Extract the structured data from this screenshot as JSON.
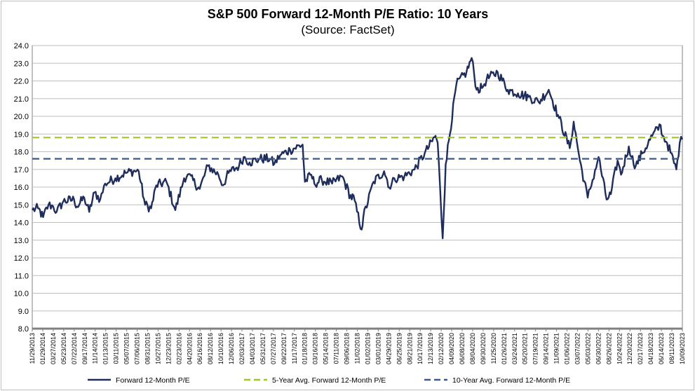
{
  "chart_data": {
    "type": "line",
    "title": "S&P 500 Forward 12-Month P/E Ratio: 10 Years",
    "subtitle": "(Source: FactSet)",
    "ylim": [
      8.0,
      24.0
    ],
    "yticks": [
      "8.0",
      "9.0",
      "10.0",
      "11.0",
      "12.0",
      "13.0",
      "14.0",
      "15.0",
      "16.0",
      "17.0",
      "18.0",
      "19.0",
      "20.0",
      "21.0",
      "22.0",
      "23.0",
      "24.0"
    ],
    "xlim": [
      "2013-11-29",
      "2023-11-30"
    ],
    "xtick_labels": [
      "11/29/2013",
      "01/29/2014",
      "03/27/2014",
      "05/23/2014",
      "07/22/2014",
      "09/17/2014",
      "11/14/2014",
      "01/13/2015",
      "03/11/2015",
      "05/07/2015",
      "07/06/2015",
      "08/31/2015",
      "10/27/2015",
      "12/23/2015",
      "02/23/2016",
      "04/20/2016",
      "06/16/2016",
      "08/12/2016",
      "10/10/2016",
      "12/06/2016",
      "02/03/2017",
      "04/03/2017",
      "05/31/2017",
      "07/27/2017",
      "09/22/2017",
      "11/17/2017",
      "01/18/2018",
      "03/16/2018",
      "05/14/2018",
      "07/11/2018",
      "09/06/2018",
      "11/02/2018",
      "01/02/2019",
      "03/01/2019",
      "04/29/2019",
      "06/25/2019",
      "08/21/2019",
      "10/17/2019",
      "12/13/2019",
      "02/12/2020",
      "04/09/2020",
      "06/08/2020",
      "08/04/2020",
      "09/30/2020",
      "11/25/2020",
      "01/26/2021",
      "03/24/2021",
      "05/20/2021",
      "07/19/2021",
      "09/14/2021",
      "11/09/2021",
      "01/06/2022",
      "03/07/2022",
      "05/03/2022",
      "06/30/2022",
      "08/26/2022",
      "10/24/2022",
      "12/20/2022",
      "02/17/2023",
      "04/18/2023",
      "06/14/2023",
      "08/11/2023",
      "10/09/2023"
    ],
    "grid": true,
    "legend_position": "bottom",
    "series": [
      {
        "name": "Forward 12-Month P/E",
        "color": "#1f2d5c",
        "style": "solid",
        "points": [
          [
            "2013-11-29",
            14.7
          ],
          [
            "2013-12-31",
            14.8
          ],
          [
            "2014-01-29",
            14.3
          ],
          [
            "2014-02-28",
            15.0
          ],
          [
            "2014-03-27",
            14.9
          ],
          [
            "2014-04-15",
            14.6
          ],
          [
            "2014-05-23",
            15.2
          ],
          [
            "2014-07-22",
            15.3
          ],
          [
            "2014-08-07",
            14.9
          ],
          [
            "2014-09-17",
            15.4
          ],
          [
            "2014-10-15",
            14.6
          ],
          [
            "2014-11-14",
            15.7
          ],
          [
            "2014-12-16",
            15.3
          ],
          [
            "2015-01-13",
            16.2
          ],
          [
            "2015-03-11",
            16.5
          ],
          [
            "2015-05-07",
            16.8
          ],
          [
            "2015-06-20",
            16.9
          ],
          [
            "2015-07-20",
            16.9
          ],
          [
            "2015-08-25",
            15.0
          ],
          [
            "2015-09-28",
            14.8
          ],
          [
            "2015-10-27",
            16.1
          ],
          [
            "2015-12-23",
            16.3
          ],
          [
            "2016-02-11",
            14.7
          ],
          [
            "2016-03-31",
            16.5
          ],
          [
            "2016-04-20",
            16.7
          ],
          [
            "2016-06-27",
            15.9
          ],
          [
            "2016-08-12",
            17.2
          ],
          [
            "2016-10-10",
            16.7
          ],
          [
            "2016-11-04",
            16.1
          ],
          [
            "2016-12-06",
            16.8
          ],
          [
            "2017-02-03",
            17.2
          ],
          [
            "2017-03-01",
            17.7
          ],
          [
            "2017-04-03",
            17.4
          ],
          [
            "2017-05-31",
            17.6
          ],
          [
            "2017-07-27",
            17.6
          ],
          [
            "2017-08-20",
            17.3
          ],
          [
            "2017-09-22",
            17.8
          ],
          [
            "2017-11-17",
            18.1
          ],
          [
            "2018-01-26",
            18.4
          ],
          [
            "2018-02-08",
            16.3
          ],
          [
            "2018-03-16",
            16.7
          ],
          [
            "2018-04-02",
            16.2
          ],
          [
            "2018-05-14",
            16.4
          ],
          [
            "2018-07-11",
            16.2
          ],
          [
            "2018-09-06",
            16.6
          ],
          [
            "2018-10-29",
            15.3
          ],
          [
            "2018-11-02",
            15.6
          ],
          [
            "2018-12-24",
            13.6
          ],
          [
            "2019-01-02",
            14.3
          ],
          [
            "2019-03-01",
            16.3
          ],
          [
            "2019-04-29",
            16.9
          ],
          [
            "2019-06-03",
            15.9
          ],
          [
            "2019-06-25",
            16.5
          ],
          [
            "2019-08-21",
            16.6
          ],
          [
            "2019-10-17",
            17.0
          ],
          [
            "2019-12-13",
            17.9
          ],
          [
            "2020-02-12",
            18.9
          ],
          [
            "2020-02-24",
            18.5
          ],
          [
            "2020-03-23",
            13.1
          ],
          [
            "2020-04-09",
            17.3
          ],
          [
            "2020-06-08",
            21.8
          ],
          [
            "2020-08-04",
            22.5
          ],
          [
            "2020-09-02",
            23.3
          ],
          [
            "2020-09-30",
            21.5
          ],
          [
            "2020-10-30",
            21.6
          ],
          [
            "2020-11-25",
            22.1
          ],
          [
            "2021-01-26",
            22.5
          ],
          [
            "2021-03-24",
            21.5
          ],
          [
            "2021-05-20",
            21.3
          ],
          [
            "2021-07-19",
            21.1
          ],
          [
            "2021-09-14",
            20.8
          ],
          [
            "2021-11-09",
            21.5
          ],
          [
            "2021-11-30",
            20.9
          ],
          [
            "2022-01-06",
            19.9
          ],
          [
            "2022-03-07",
            18.2
          ],
          [
            "2022-03-29",
            19.7
          ],
          [
            "2022-05-03",
            17.5
          ],
          [
            "2022-06-16",
            15.4
          ],
          [
            "2022-06-30",
            15.9
          ],
          [
            "2022-08-16",
            17.7
          ],
          [
            "2022-09-30",
            15.3
          ],
          [
            "2022-10-24",
            15.6
          ],
          [
            "2022-12-01",
            17.5
          ],
          [
            "2022-12-20",
            16.7
          ],
          [
            "2023-02-02",
            18.3
          ],
          [
            "2023-02-17",
            17.7
          ],
          [
            "2023-03-13",
            17.2
          ],
          [
            "2023-04-18",
            17.9
          ],
          [
            "2023-06-14",
            18.9
          ],
          [
            "2023-07-31",
            19.5
          ],
          [
            "2023-08-11",
            18.9
          ],
          [
            "2023-09-05",
            18.5
          ],
          [
            "2023-10-27",
            17.0
          ],
          [
            "2023-11-15",
            18.5
          ],
          [
            "2023-11-30",
            18.7
          ]
        ]
      },
      {
        "name": "5-Year Avg. Forward 12-Month P/E",
        "color": "#9dc72a",
        "style": "dashed",
        "value": 18.8
      },
      {
        "name": "10-Year Avg. Forward 12-Month P/E",
        "color": "#3b5a8c",
        "style": "dashed",
        "value": 17.6
      }
    ]
  }
}
